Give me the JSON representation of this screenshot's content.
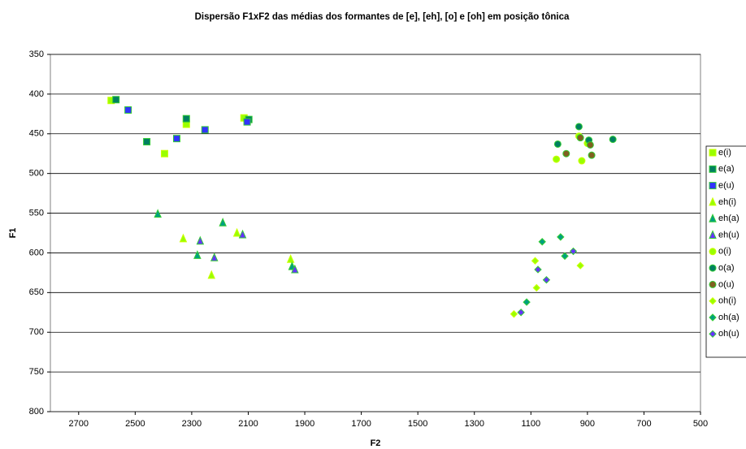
{
  "chart_data": {
    "type": "scatter",
    "title": "Dispersão F1xF2 das médias dos formantes de [e], [eh], [o] e [oh] em posição tônica",
    "x_label": "F2",
    "y_label": "F1",
    "xlim": [
      2800,
      500
    ],
    "xticks": [
      2700,
      2500,
      2300,
      2100,
      1900,
      1700,
      1500,
      1300,
      1100,
      900,
      700,
      500
    ],
    "ylim": [
      350,
      800
    ],
    "yticks": [
      350,
      400,
      450,
      500,
      550,
      600,
      650,
      700,
      750,
      800
    ],
    "grid": true,
    "legend": "right",
    "series": [
      {
        "name": "e(i)",
        "marker": "square",
        "color": "#99ff00",
        "x": [
          2585,
          2396,
          2319,
          2115
        ],
        "values": [
          408,
          475,
          438,
          430
        ]
      },
      {
        "name": "e(a)",
        "marker": "square",
        "color": "#008060",
        "x": [
          2568,
          2459,
          2319,
          2098
        ],
        "values": [
          407,
          460,
          431,
          432
        ]
      },
      {
        "name": "e(u)",
        "marker": "square",
        "color": "#3333ff",
        "x": [
          2525,
          2353,
          2253,
          2104
        ],
        "values": [
          420,
          456,
          445,
          435
        ]
      },
      {
        "name": "eh(i)",
        "marker": "triangle",
        "color": "#99ff00",
        "x": [
          2330,
          2230,
          2140,
          1950
        ],
        "values": [
          582,
          628,
          575,
          608
        ]
      },
      {
        "name": "eh(a)",
        "marker": "triangle",
        "color": "#00a080",
        "x": [
          2420,
          2280,
          2190,
          1945
        ],
        "values": [
          551,
          603,
          562,
          617
        ]
      },
      {
        "name": "eh(u)",
        "marker": "triangle",
        "color": "#6633ff",
        "x": [
          2270,
          2220,
          2120,
          1935
        ],
        "values": [
          585,
          606,
          577,
          621
        ]
      },
      {
        "name": "o(i)",
        "marker": "circle",
        "color": "#99ff00",
        "x": [
          1010,
          920,
          900,
          930
        ],
        "values": [
          482,
          484,
          462,
          453
        ]
      },
      {
        "name": "o(a)",
        "marker": "circle",
        "color": "#008060",
        "x": [
          1005,
          930,
          895,
          810
        ],
        "values": [
          463,
          441,
          458,
          457
        ]
      },
      {
        "name": "o(u)",
        "marker": "circle",
        "color": "#806020",
        "x": [
          975,
          925,
          890,
          885
        ],
        "values": [
          475,
          455,
          464,
          477
        ]
      },
      {
        "name": "oh(i)",
        "marker": "diamond",
        "color": "#99ff00",
        "x": [
          1160,
          1085,
          1080,
          925
        ],
        "values": [
          677,
          610,
          644,
          616
        ]
      },
      {
        "name": "oh(a)",
        "marker": "diamond",
        "color": "#00a080",
        "x": [
          1115,
          1060,
          995,
          980
        ],
        "values": [
          662,
          586,
          580,
          604
        ]
      },
      {
        "name": "oh(u)",
        "marker": "diamond",
        "color": "#6633ff",
        "x": [
          1135,
          1075,
          1045,
          950
        ],
        "values": [
          675,
          621,
          634,
          598
        ]
      }
    ]
  }
}
